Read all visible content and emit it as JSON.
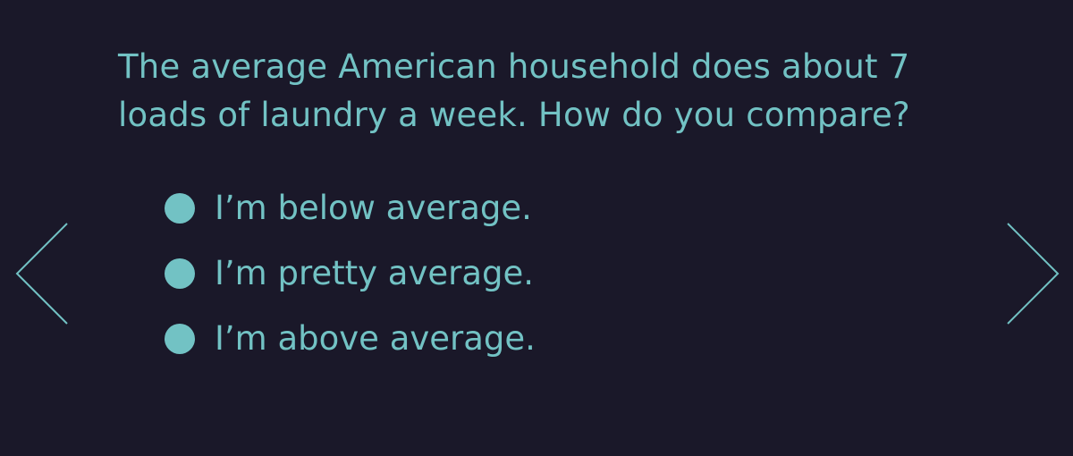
{
  "question": "The average American household does about 7 loads of laundry a week. How do you compare?",
  "options": [
    {
      "label": "I’m below average."
    },
    {
      "label": "I’m pretty average."
    },
    {
      "label": "I’m above average."
    }
  ],
  "navigation": {
    "prev_icon": "chevron-left-icon",
    "next_icon": "chevron-right-icon"
  },
  "colors": {
    "background": "#1a1829",
    "accent": "#72c2c4"
  }
}
